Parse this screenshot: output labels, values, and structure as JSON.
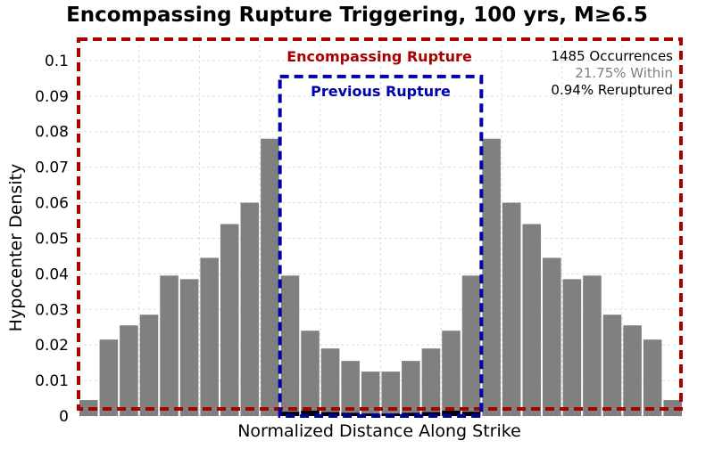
{
  "chart_data": {
    "type": "bar",
    "title": "Encompassing Rupture Triggering, 100 yrs, M≥6.5",
    "xlabel": "Normalized Distance Along Strike",
    "ylabel": "Hypocenter Density",
    "ylim": [
      0,
      0.1075
    ],
    "yticks": [
      "0",
      "0.01",
      "0.02",
      "0.03",
      "0.04",
      "0.05",
      "0.06",
      "0.07",
      "0.08",
      "0.09",
      "0.1"
    ],
    "ytick_values": [
      0,
      0.01,
      0.02,
      0.03,
      0.04,
      0.05,
      0.06,
      0.07,
      0.08,
      0.09,
      0.1
    ],
    "grid": true,
    "bin_count": 30,
    "series": [
      {
        "key": "within",
        "color": "#808080",
        "values": [
          0.0045,
          0.0215,
          0.0255,
          0.0285,
          0.0395,
          0.0385,
          0.0445,
          0.054,
          0.06,
          0.078,
          0.0395,
          0.024,
          0.019,
          0.0155,
          0.0125,
          0.0125,
          0.0155,
          0.019,
          0.024,
          0.0395,
          0.078,
          0.06,
          0.054,
          0.0445,
          0.0385,
          0.0395,
          0.0285,
          0.0255,
          0.0215,
          0.0045
        ]
      },
      {
        "key": "reruptured",
        "color": "#000000",
        "values": [
          0,
          0,
          0,
          0,
          0,
          0,
          0,
          0,
          0,
          0,
          0.0012,
          0.0015,
          0.0011,
          0.0009,
          0.0007,
          0.0007,
          0.0009,
          0.0011,
          0.0015,
          0.0012,
          0,
          0,
          0,
          0,
          0,
          0,
          0,
          0,
          0,
          0
        ]
      }
    ],
    "encompassing_rupture": {
      "label": "Encompassing Rupture",
      "color": "#aa0000"
    },
    "previous_rupture": {
      "label": "Previous Rupture",
      "color": "#0000aa",
      "bin_start": 10,
      "bin_end": 20,
      "y_top": 0.0955
    },
    "stats": {
      "occurrences": "1485 Occurrences",
      "within": "21.75% Within",
      "reruptured": "0.94% Reruptured",
      "within_color": "#808080",
      "reruptured_color": "#000000"
    }
  }
}
